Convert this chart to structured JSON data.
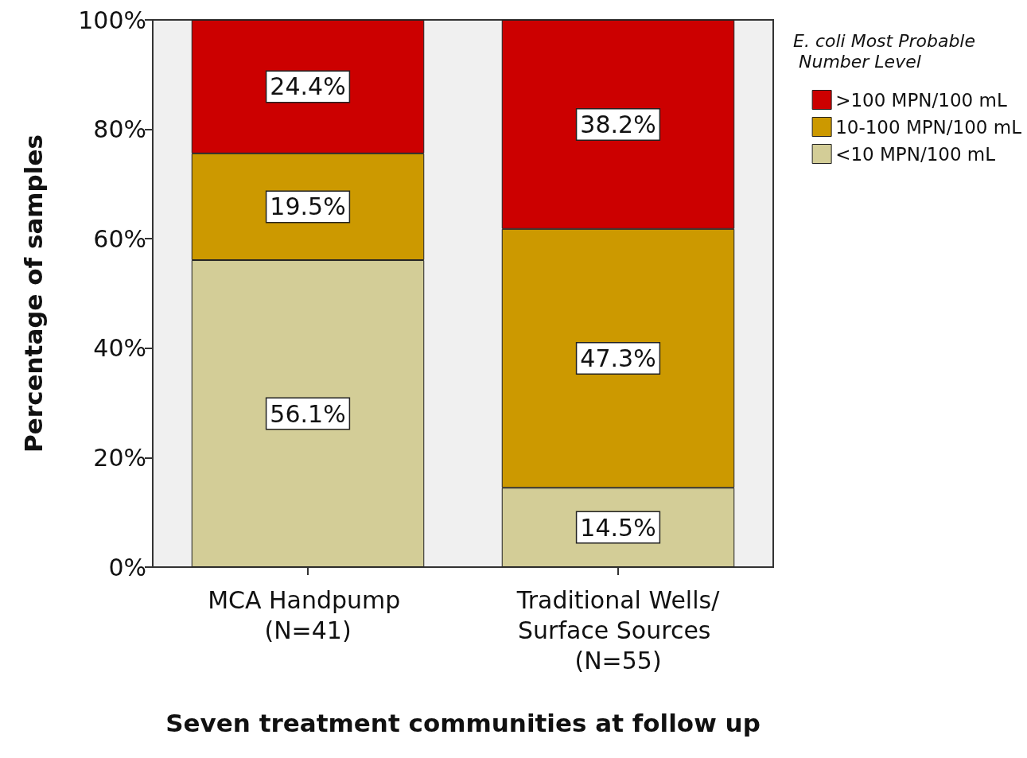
{
  "chart_data": {
    "type": "bar",
    "stacked": true,
    "xlabel": "Seven treatment communities at follow up",
    "ylabel": "Percentage of samples",
    "legend_title": "E. coli Most Probable Number Level",
    "categories": [
      "MCA Handpump (N=41)",
      "Traditional Wells/Surface Sources (N=55)"
    ],
    "series": [
      {
        "name": "<10 MPN/100 mL",
        "color": "#d3cd97",
        "values": [
          56.1,
          14.5
        ],
        "value_labels": [
          "56.1%",
          "14.5%"
        ]
      },
      {
        "name": "10-100 MPN/100 mL",
        "color": "#cc9900",
        "values": [
          19.5,
          47.3
        ],
        "value_labels": [
          "19.5%",
          "47.3%"
        ]
      },
      {
        "name": ">100 MPN/100 mL",
        "color": "#cc0000",
        "values": [
          24.4,
          38.2
        ],
        "value_labels": [
          "24.4%",
          "38.2%"
        ]
      }
    ],
    "ylim": [
      0,
      100
    ],
    "yticks": [
      {
        "value": 0,
        "label": "0%"
      },
      {
        "value": 20,
        "label": "20%"
      },
      {
        "value": 40,
        "label": "40%"
      },
      {
        "value": 60,
        "label": "60%"
      },
      {
        "value": 80,
        "label": "80%"
      },
      {
        "value": 100,
        "label": "100%"
      }
    ],
    "grid": false,
    "legend": "top right"
  }
}
